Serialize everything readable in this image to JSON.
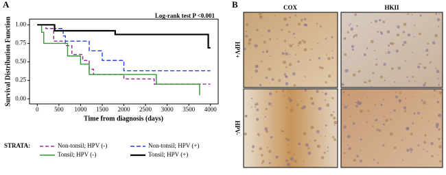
{
  "chart_data": {
    "type": "step",
    "panel_label": "A",
    "annotation": "Log-rank test P <0.001",
    "x_label": "Time from diagnosis (days)",
    "y_label": "Survival Distribution Function",
    "xlim": [
      -100,
      4100
    ],
    "ylim": [
      -0.03,
      1.04
    ],
    "xticks": [
      0,
      500,
      1000,
      1500,
      2000,
      2500,
      3000,
      3500,
      4000
    ],
    "yticks": [
      {
        "value": 0,
        "label": "0.00"
      },
      {
        "value": 0.25,
        "label": "0.25"
      },
      {
        "value": 0.5,
        "label": "0.50"
      },
      {
        "value": 0.75,
        "label": "0.75"
      },
      {
        "value": 1,
        "label": "1.00"
      }
    ],
    "legend_title": "STRATA:",
    "series": [
      {
        "name": "Non-tonsil; HPV (-)",
        "color": "#8b2c8b",
        "dash": "5,3",
        "x": [
          0,
          200,
          380,
          650,
          800,
          1050,
          1200,
          1300,
          2000,
          2700,
          4000
        ],
        "values": [
          1,
          0.95,
          0.78,
          0.72,
          0.6,
          0.52,
          0.4,
          0.33,
          0.27,
          0.2,
          0.2
        ]
      },
      {
        "name": "Non-tonsil; HPV (+)",
        "color": "#1f3fe0",
        "dash": "6,3",
        "x": [
          0,
          400,
          600,
          650,
          1200,
          1500,
          2000,
          4000
        ],
        "values": [
          1,
          0.95,
          0.85,
          0.78,
          0.65,
          0.52,
          0.38,
          0.38
        ]
      },
      {
        "name": "Tonsil; HPV (-)",
        "color": "#2e9a2e",
        "dash": "",
        "x": [
          0,
          100,
          150,
          700,
          1000,
          1200,
          2750,
          3750
        ],
        "values": [
          1,
          0.9,
          0.75,
          0.58,
          0.47,
          0.33,
          0.2,
          0.05
        ]
      },
      {
        "name": "Tonsil; HPV (+)",
        "color": "#000000",
        "dash": "",
        "x": [
          0,
          400,
          1800,
          3950,
          4000
        ],
        "values": [
          1,
          0.92,
          0.87,
          0.69,
          0.69
        ]
      }
    ]
  },
  "panel_b": {
    "panel_label": "B",
    "columns": [
      "COX",
      "HKII"
    ],
    "rows": [
      "HPV+",
      "HPV-"
    ]
  }
}
